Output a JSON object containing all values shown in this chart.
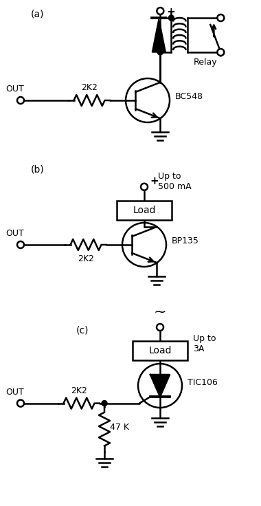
{
  "background": "#ffffff",
  "line_color": "#000000",
  "lw": 1.8,
  "labels": {
    "a": "(a)",
    "b": "(b)",
    "c": "(c)",
    "bc548": "BC548",
    "bp135": "BP135",
    "tic106": "TIC106",
    "relay": "Relay",
    "r1a": "2K2",
    "r1b": "2K2",
    "r1c": "2K2",
    "r2c": "47 K",
    "out": "OUT",
    "plus": "+",
    "load": "Load",
    "upto500": "Up to\n500 mA",
    "upto3a": "Up to\n3A"
  }
}
